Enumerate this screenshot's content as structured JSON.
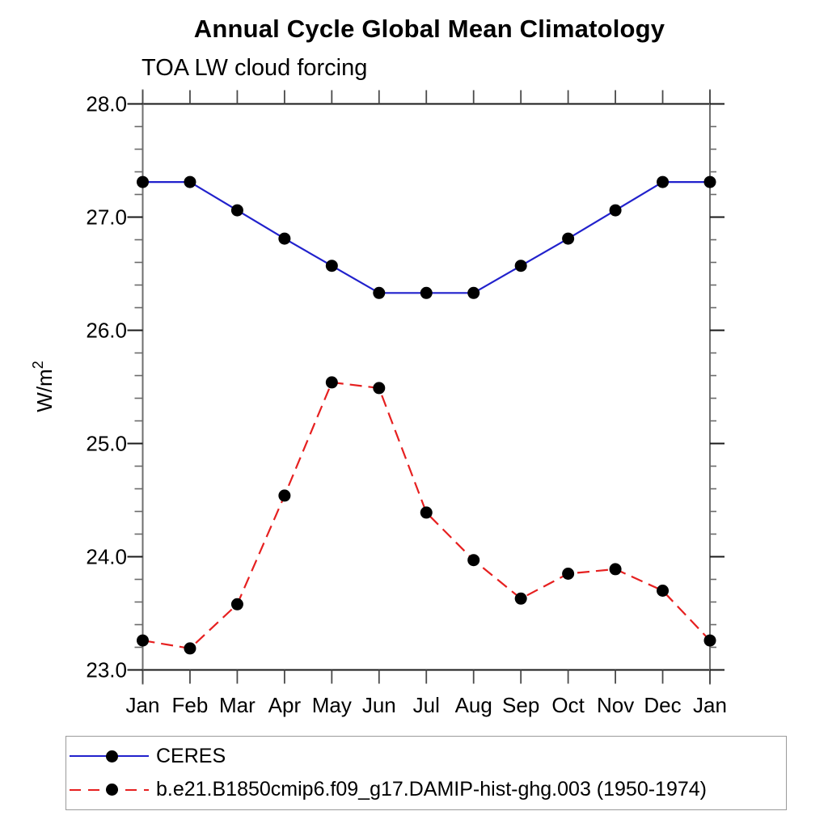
{
  "page": {
    "background": "#ffffff"
  },
  "chart_data": {
    "type": "line",
    "title": "Annual Cycle Global Mean Climatology",
    "subtitle": "TOA LW cloud forcing",
    "ylabel": "W/m²",
    "xlabel": "",
    "x_categories": [
      "Jan",
      "Feb",
      "Mar",
      "Apr",
      "May",
      "Jun",
      "Jul",
      "Aug",
      "Sep",
      "Oct",
      "Nov",
      "Dec",
      "Jan"
    ],
    "ylim": [
      23.0,
      28.0
    ],
    "ytick_values": [
      23,
      24,
      25,
      26,
      27,
      28
    ],
    "ytick_labels": [
      "23.0",
      "24.0",
      "25.0",
      "26.0",
      "27.0",
      "28.0"
    ],
    "ytick_minor_step": 0.2,
    "grid": false,
    "legend_position": "bottom-left-box",
    "marker": {
      "shape": "circle",
      "color": "#000000",
      "radius_px": 7.5
    },
    "axis_frame_color": "#6e6e6e",
    "tick_color": "#1a1a1a",
    "series": [
      {
        "name": "CERES",
        "color": "#2121cc",
        "line_style": "solid",
        "values": [
          27.31,
          27.31,
          27.06,
          26.81,
          26.57,
          26.33,
          26.33,
          26.33,
          26.57,
          26.81,
          27.06,
          27.31,
          27.31
        ]
      },
      {
        "name": "b.e21.B1850cmip6.f09_g17.DAMIP-hist-ghg.003 (1950-1974)",
        "color": "#e62020",
        "line_style": "dashed",
        "values": [
          23.26,
          23.19,
          23.58,
          24.54,
          25.54,
          25.49,
          24.39,
          23.97,
          23.63,
          23.85,
          23.89,
          23.7,
          23.26
        ]
      }
    ]
  }
}
